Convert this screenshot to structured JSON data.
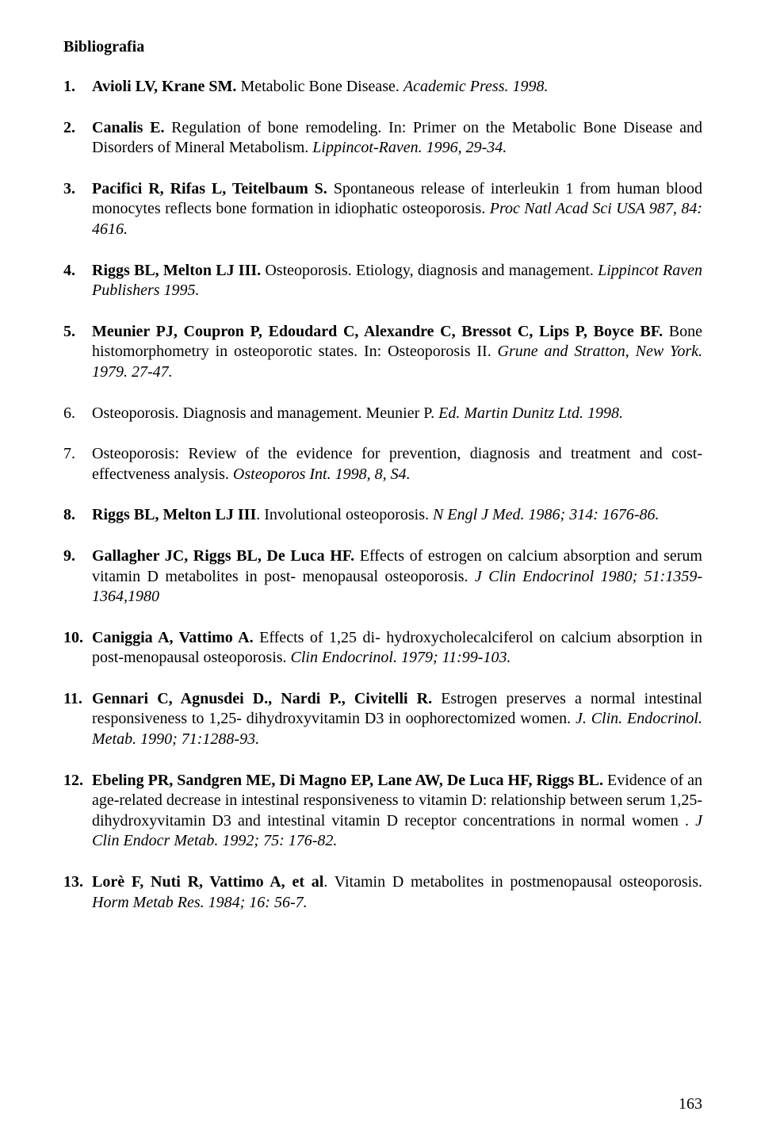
{
  "sectionTitle": "Bibliografia",
  "pageNumber": "163",
  "refs": [
    {
      "num_bold": true,
      "html": "<span class='b'>Avioli LV, Krane SM.</span> Metabolic Bone Disease. <span class='i'>Academic Press. 1998.</span>"
    },
    {
      "num_bold": true,
      "html": "<span class='b'>Canalis E.</span> Regulation of bone remodeling. In: Primer on the Metabolic Bone Disease and Disorders of Mineral Metabolism. <span class='i'>Lippincot-Raven. 1996, 29-34.</span>"
    },
    {
      "num_bold": true,
      "html": "<span class='b'>Pacifici R, Rifas L, Teitelbaum S.</span> Spontaneous release of interleukin 1 from human blood monocytes reflects bone formation in idiophatic osteoporosis. <span class='i'>Proc Natl Acad Sci USA 987, 84: 4616.</span>"
    },
    {
      "num_bold": true,
      "html": "<span class='b'>Riggs BL, Melton LJ III.</span> Osteoporosis. Etiology, diagnosis and management. <span class='i'>Lippincot Raven Publishers  1995.</span>"
    },
    {
      "num_bold": true,
      "html": "<span class='b'>Meunier PJ, Coupron P, Edoudard C, Alexandre C, Bressot C, Lips P, Boyce BF.</span> Bone histomorphometry in osteoporotic states. In: Osteoporosis II. <span class='i'>Grune and Stratton, New York. 1979. 27-47.</span>"
    },
    {
      "num_bold": false,
      "html": "Osteoporosis. Diagnosis and management. Meunier P. <span class='i'>Ed. Martin Dunitz Ltd. 1998.</span>"
    },
    {
      "num_bold": false,
      "html": "Osteoporosis: Review of the evidence for prevention, diagnosis and treatment and cost-effectveness analysis. <span class='i'>Osteoporos Int. 1998, 8, S4.</span>"
    },
    {
      "num_bold": true,
      "html": "<span class='b'>Riggs BL, Melton LJ III</span>. Involutional osteoporosis. <span class='i'>N Engl J Med. 1986; 314: 1676-86.</span>"
    },
    {
      "num_bold": true,
      "html": "<span class='b'>Gallagher JC, Riggs BL, De Luca HF.</span> Effects of estrogen on calcium absorption and serum vitamin D metabolites in post- menopausal osteoporosis. <span class='i'>J Clin Endocrinol 1980; 51:1359-1364,1980</span>"
    },
    {
      "num_bold": true,
      "html": "<span class='b'>Caniggia A, Vattimo A.</span> Effects of 1,25 di- hydroxycholecalciferol on calcium absorption in post-menopausal osteoporosis. <span class='i'>Clin Endocrinol. 1979; 11:99-103.</span>"
    },
    {
      "num_bold": true,
      "html": "<span class='b'>Gennari C, Agnusdei D., Nardi P., Civitelli R.</span> Estrogen preserves a normal intestinal responsiveness to 1,25- dihydroxyvitamin D3 in oophorectomized women. <span class='i'>J. Clin. Endocrinol. Metab. 1990; 71:1288-93.</span>"
    },
    {
      "num_bold": true,
      "html": " <span class='b'>Ebeling PR, Sandgren ME, Di Magno EP, Lane AW, De Luca HF, Riggs BL.</span> Evidence of an age-related decrease in intestinal responsiveness to vitamin D: relationship between serum 1,25-dihydroxyvitamin D3 and intestinal vitamin D receptor concentrations in normal women . <span class='i'>J Clin Endocr Metab. 1992; 75: 176-82.</span>"
    },
    {
      "num_bold": true,
      "html": "<span class='b'>Lorè F, Nuti R, Vattimo A, et al</span>. Vitamin D metabolites in postmenopausal osteoporosis. <span class='i'>Horm Metab Res. 1984; 16: 56-7.</span>"
    }
  ]
}
